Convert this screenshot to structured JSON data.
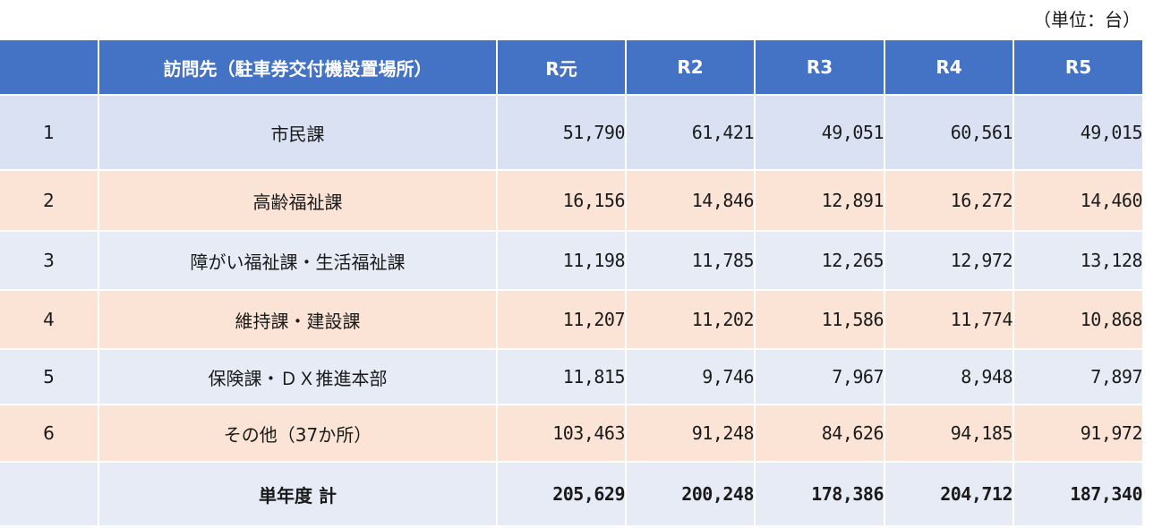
{
  "unit_note": "（単位：台）",
  "header": {
    "col_no": "",
    "col_place": "訪問先（駐車券交付機設置場所）",
    "years": [
      "R元",
      "R2",
      "R3",
      "R4",
      "R5"
    ]
  },
  "rows": [
    {
      "no": "1",
      "place": "市民課",
      "values": [
        "51,790",
        "61,421",
        "49,051",
        "60,561",
        "49,015"
      ]
    },
    {
      "no": "2",
      "place": "高齢福祉課",
      "values": [
        "16,156",
        "14,846",
        "12,891",
        "16,272",
        "14,460"
      ]
    },
    {
      "no": "3",
      "place": "障がい福祉課・生活福祉課",
      "values": [
        "11,198",
        "11,785",
        "12,265",
        "12,972",
        "13,128"
      ]
    },
    {
      "no": "4",
      "place": "維持課・建設課",
      "values": [
        "11,207",
        "11,202",
        "11,586",
        "11,774",
        "10,868"
      ]
    },
    {
      "no": "5",
      "place": "保険課・ＤＸ推進本部",
      "values": [
        "11,815",
        "9,746",
        "7,967",
        "8,948",
        "7,897"
      ]
    },
    {
      "no": "6",
      "place": "その他（37か所）",
      "values": [
        "103,463",
        "91,248",
        "84,626",
        "94,185",
        "91,972"
      ]
    }
  ],
  "total": {
    "label": "単年度 計",
    "values": [
      "205,629",
      "200,248",
      "178,386",
      "204,712",
      "187,340"
    ]
  },
  "colors": {
    "header": "#4472c4",
    "row_blue": "#d9e1f2",
    "row_peach": "#fbe4d5",
    "row_light": "#e7ebf5"
  }
}
